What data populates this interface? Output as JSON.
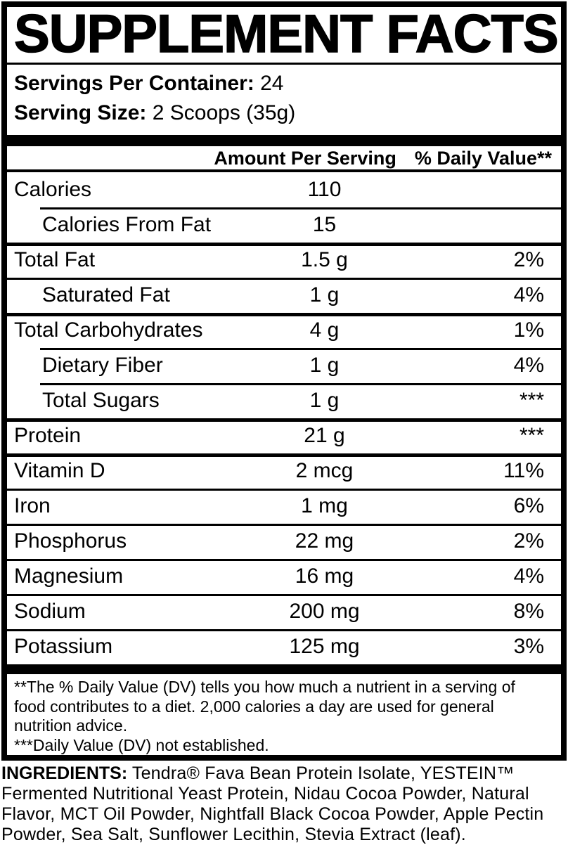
{
  "label": {
    "title": "SUPPLEMENT FACTS",
    "servings_per_container_label": "Servings Per Container:",
    "servings_per_container_value": " 24",
    "serving_size_label": "Serving Size:",
    "serving_size_value": " 2 Scoops (35g)",
    "columns": {
      "amount": "Amount Per Serving",
      "daily_value": "% Daily Value**"
    },
    "rows": [
      {
        "name": "Calories",
        "amount": "110",
        "dv": ""
      },
      {
        "name": "Calories From Fat",
        "amount": "15",
        "dv": ""
      },
      {
        "name": "Total Fat",
        "amount": "1.5 g",
        "dv": "2%"
      },
      {
        "name": "Saturated Fat",
        "amount": "1 g",
        "dv": "4%"
      },
      {
        "name": "Total Carbohydrates",
        "amount": "4 g",
        "dv": "1%"
      },
      {
        "name": "Dietary Fiber",
        "amount": "1 g",
        "dv": "4%"
      },
      {
        "name": "Total Sugars",
        "amount": "1 g",
        "dv": "***"
      },
      {
        "name": "Protein",
        "amount": "21 g",
        "dv": "***"
      },
      {
        "name": "Vitamin D",
        "amount": "2 mcg",
        "dv": "11%"
      },
      {
        "name": "Iron",
        "amount": "1 mg",
        "dv": "6%"
      },
      {
        "name": "Phosphorus",
        "amount": "22 mg",
        "dv": "2%"
      },
      {
        "name": "Magnesium",
        "amount": "16 mg",
        "dv": "4%"
      },
      {
        "name": "Sodium",
        "amount": "200 mg",
        "dv": "8%"
      },
      {
        "name": "Potassium",
        "amount": "125 mg",
        "dv": "3%"
      }
    ],
    "footnotes": {
      "daily_value": "**The % Daily Value (DV) tells you how much a nutrient in a serving of food contributes to a diet. 2,000 calories a day are used for general nutrition advice.",
      "not_established": "***Daily Value (DV) not established."
    }
  },
  "ingredients": {
    "label": "INGREDIENTS:",
    "text": " Tendra® Fava Bean Protein Isolate, YESTEIN™ Fermented Nutritional Yeast Protein, Nidau Cocoa Powder, Natural Flavor, MCT Oil Powder, Nightfall Black Cocoa Powder, Apple Pectin Powder, Sea Salt, Sunflower Lecithin, Stevia Extract (leaf)."
  },
  "colors": {
    "ink": "#000000",
    "background": "#ffffff"
  }
}
